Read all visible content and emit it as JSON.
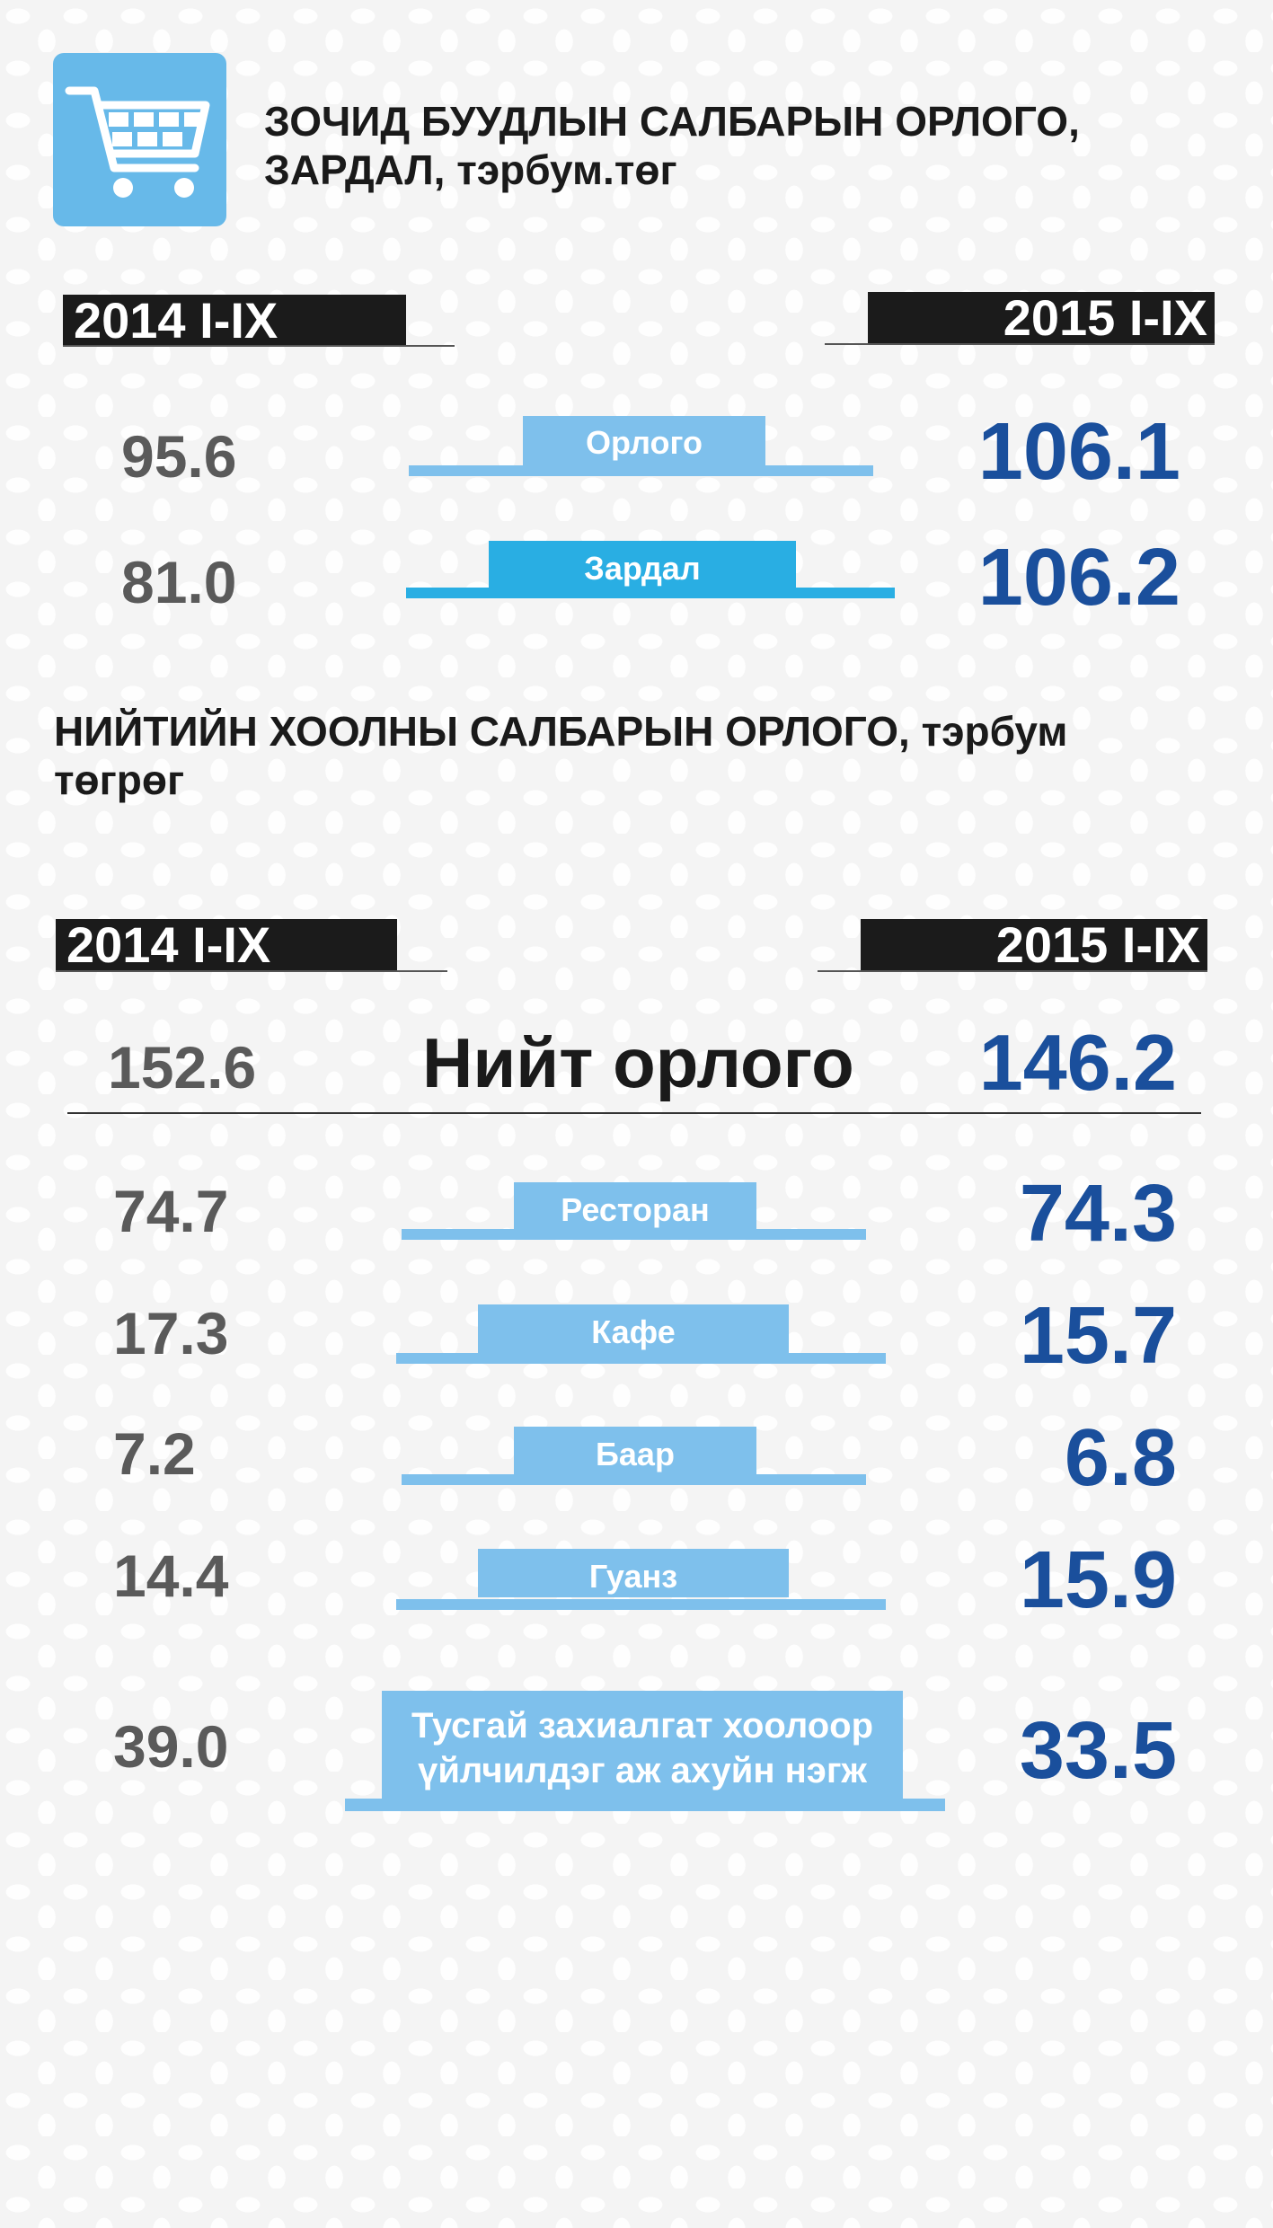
{
  "section1": {
    "title_line1": "ЗОЧИД БУУДЛЫН САЛБАРЫН ОРЛОГО,",
    "title_line2": "ЗАРДАЛ, тэрбум.төг",
    "year_left": "2014 I-IX",
    "year_right": "2015 I-IX"
  },
  "section2": {
    "title_line1": "НИЙТИЙН ХООЛНЫ САЛБАРЫН ОРЛОГО, тэрбум",
    "title_line2": "төгрөг",
    "year_left": "2014 I-IX",
    "year_right": "2015 I-IX",
    "total_label": "Нийт орлого",
    "total_2014": "152.6",
    "total_2015": "146.2"
  },
  "chart_data": [
    {
      "type": "table",
      "title": "ЗОЧИД БУУДЛЫН САЛБАРЫН ОРЛОГО, ЗАРДАЛ, тэрбум.төг",
      "columns": [
        "2014 I-IX",
        "2015 I-IX"
      ],
      "rows": [
        {
          "label": "Орлого",
          "values": [
            "95.6",
            "106.1"
          ]
        },
        {
          "label": "Зардал",
          "values": [
            "81.0",
            "106.2"
          ]
        }
      ]
    },
    {
      "type": "table",
      "title": "НИЙТИЙН ХООЛНЫ САЛБАРЫН ОРЛОГО, тэрбум төгрөг",
      "columns": [
        "2014 I-IX",
        "2015 I-IX"
      ],
      "rows": [
        {
          "label": "Нийт орлого",
          "values": [
            "152.6",
            "146.2"
          ]
        },
        {
          "label": "Ресторан",
          "values": [
            "74.7",
            "74.3"
          ]
        },
        {
          "label": "Кафе",
          "values": [
            "17.3",
            "15.7"
          ]
        },
        {
          "label": "Баар",
          "values": [
            "7.2",
            "6.8"
          ]
        },
        {
          "label": "Гуанз",
          "values": [
            "14.4",
            "15.9"
          ]
        },
        {
          "label_line1": "Тусгай захиалгат хоолоор",
          "label_line2": "үйлчилдэг аж ахуйн нэгж",
          "values": [
            "39.0",
            "33.5"
          ]
        }
      ]
    }
  ],
  "colors": {
    "accent_light": "#7ec0ec",
    "accent_bright": "#29aee3",
    "value_2015": "#1a4f9c",
    "value_2014": "#5a5a5a",
    "year_box": "#1b1b1b"
  },
  "icons": {
    "cart": "shopping-cart-icon"
  }
}
